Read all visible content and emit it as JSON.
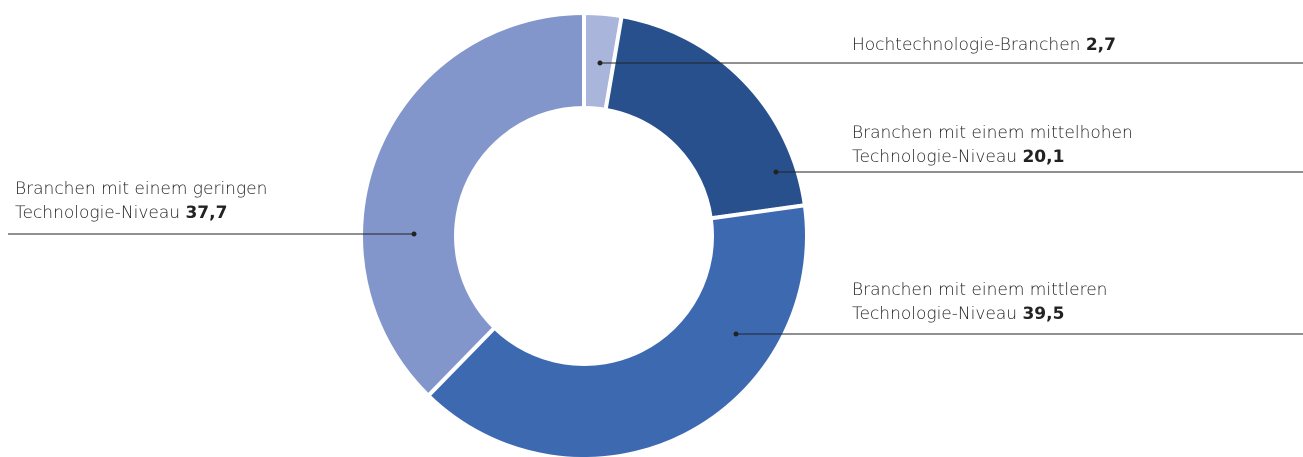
{
  "chart_data": {
    "type": "pie",
    "style": "donut",
    "title": "",
    "slices": [
      {
        "label_lines": [
          "Hochtechnologie-Branchen"
        ],
        "value": 2.7,
        "value_text": "2,7",
        "color": "#a9b5da"
      },
      {
        "label_lines": [
          "Branchen mit einem mittelhohen",
          "Technologie-Niveau"
        ],
        "value": 20.1,
        "value_text": "20,1",
        "color": "#28508d"
      },
      {
        "label_lines": [
          "Branchen mit einem mittleren",
          "Technologie-Niveau"
        ],
        "value": 39.5,
        "value_text": "39,5",
        "color": "#3d69b1"
      },
      {
        "label_lines": [
          "Branchen mit einem geringen",
          "Technologie-Niveau"
        ],
        "value": 37.7,
        "value_text": "37,7",
        "color": "#8396cb"
      }
    ],
    "legend": "none"
  }
}
